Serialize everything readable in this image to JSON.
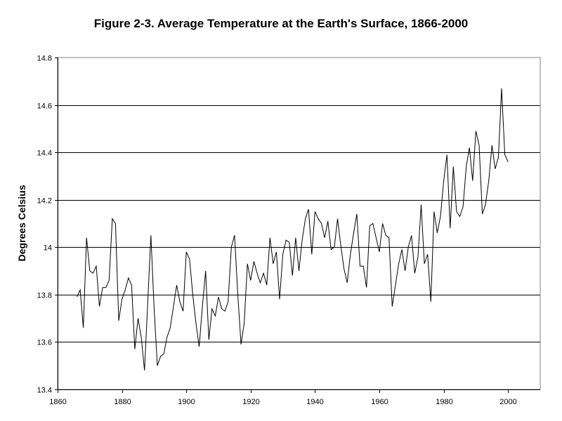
{
  "chart_data": {
    "type": "line",
    "title": "Figure 2-3. Average Temperature at the Earth's Surface, 1866-2000",
    "xlabel": "",
    "ylabel": "Degrees Celsius",
    "xlim": [
      1860,
      2010
    ],
    "ylim": [
      13.4,
      14.8
    ],
    "x_ticks": [
      1860,
      1880,
      1900,
      1920,
      1940,
      1960,
      1980,
      2000
    ],
    "x_tick_labels": [
      "1860",
      "1880",
      "1900",
      "1920",
      "1940",
      "1960",
      "1980",
      "2000"
    ],
    "y_ticks": [
      13.4,
      13.6,
      13.8,
      14.0,
      14.2,
      14.4,
      14.6,
      14.8
    ],
    "y_tick_labels": [
      "13.4",
      "13.6",
      "13.8",
      "14",
      "14.2",
      "14.4",
      "14.6",
      "14.8"
    ],
    "grid": "horizontal",
    "line_color": "#000000",
    "grid_color": "#000000",
    "series": [
      {
        "name": "Average Temperature",
        "x": [
          1866,
          1867,
          1868,
          1869,
          1870,
          1871,
          1872,
          1873,
          1874,
          1875,
          1876,
          1877,
          1878,
          1879,
          1880,
          1881,
          1882,
          1883,
          1884,
          1885,
          1886,
          1887,
          1888,
          1889,
          1890,
          1891,
          1892,
          1893,
          1894,
          1895,
          1896,
          1897,
          1898,
          1899,
          1900,
          1901,
          1902,
          1903,
          1904,
          1905,
          1906,
          1907,
          1908,
          1909,
          1910,
          1911,
          1912,
          1913,
          1914,
          1915,
          1916,
          1917,
          1918,
          1919,
          1920,
          1921,
          1922,
          1923,
          1924,
          1925,
          1926,
          1927,
          1928,
          1929,
          1930,
          1931,
          1932,
          1933,
          1934,
          1935,
          1936,
          1937,
          1938,
          1939,
          1940,
          1941,
          1942,
          1943,
          1944,
          1945,
          1946,
          1947,
          1948,
          1949,
          1950,
          1951,
          1952,
          1953,
          1954,
          1955,
          1956,
          1957,
          1958,
          1959,
          1960,
          1961,
          1962,
          1963,
          1964,
          1965,
          1966,
          1967,
          1968,
          1969,
          1970,
          1971,
          1972,
          1973,
          1974,
          1975,
          1976,
          1977,
          1978,
          1979,
          1980,
          1981,
          1982,
          1983,
          1984,
          1985,
          1986,
          1987,
          1988,
          1989,
          1990,
          1991,
          1992,
          1993,
          1994,
          1995,
          1996,
          1997,
          1998,
          1999,
          2000
        ],
        "values": [
          13.79,
          13.82,
          13.66,
          14.04,
          13.9,
          13.89,
          13.92,
          13.75,
          13.83,
          13.83,
          13.86,
          14.12,
          14.1,
          13.69,
          13.78,
          13.82,
          13.87,
          13.84,
          13.57,
          13.7,
          13.62,
          13.48,
          13.76,
          14.05,
          13.74,
          13.5,
          13.54,
          13.55,
          13.62,
          13.66,
          13.75,
          13.84,
          13.77,
          13.73,
          13.98,
          13.95,
          13.8,
          13.68,
          13.58,
          13.75,
          13.9,
          13.61,
          13.74,
          13.71,
          13.79,
          13.74,
          13.73,
          13.77,
          14.0,
          14.05,
          13.8,
          13.59,
          13.68,
          13.93,
          13.86,
          13.94,
          13.89,
          13.85,
          13.89,
          13.84,
          14.04,
          13.93,
          13.98,
          13.78,
          13.97,
          14.03,
          14.02,
          13.88,
          14.04,
          13.9,
          14.03,
          14.12,
          14.16,
          13.97,
          14.15,
          14.12,
          14.1,
          14.04,
          14.11,
          13.99,
          14.0,
          14.12,
          14.01,
          13.91,
          13.85,
          13.97,
          14.06,
          14.14,
          13.92,
          13.92,
          13.83,
          14.09,
          14.1,
          14.04,
          13.98,
          14.1,
          14.05,
          14.04,
          13.75,
          13.84,
          13.93,
          13.99,
          13.9,
          14.0,
          14.05,
          13.89,
          13.96,
          14.18,
          13.93,
          13.97,
          13.77,
          14.15,
          14.06,
          14.13,
          14.28,
          14.39,
          14.08,
          14.34,
          14.15,
          14.13,
          14.17,
          14.34,
          14.42,
          14.28,
          14.49,
          14.43,
          14.14,
          14.18,
          14.28,
          14.43,
          14.33,
          14.38,
          14.67,
          14.39,
          14.36
        ]
      }
    ]
  }
}
